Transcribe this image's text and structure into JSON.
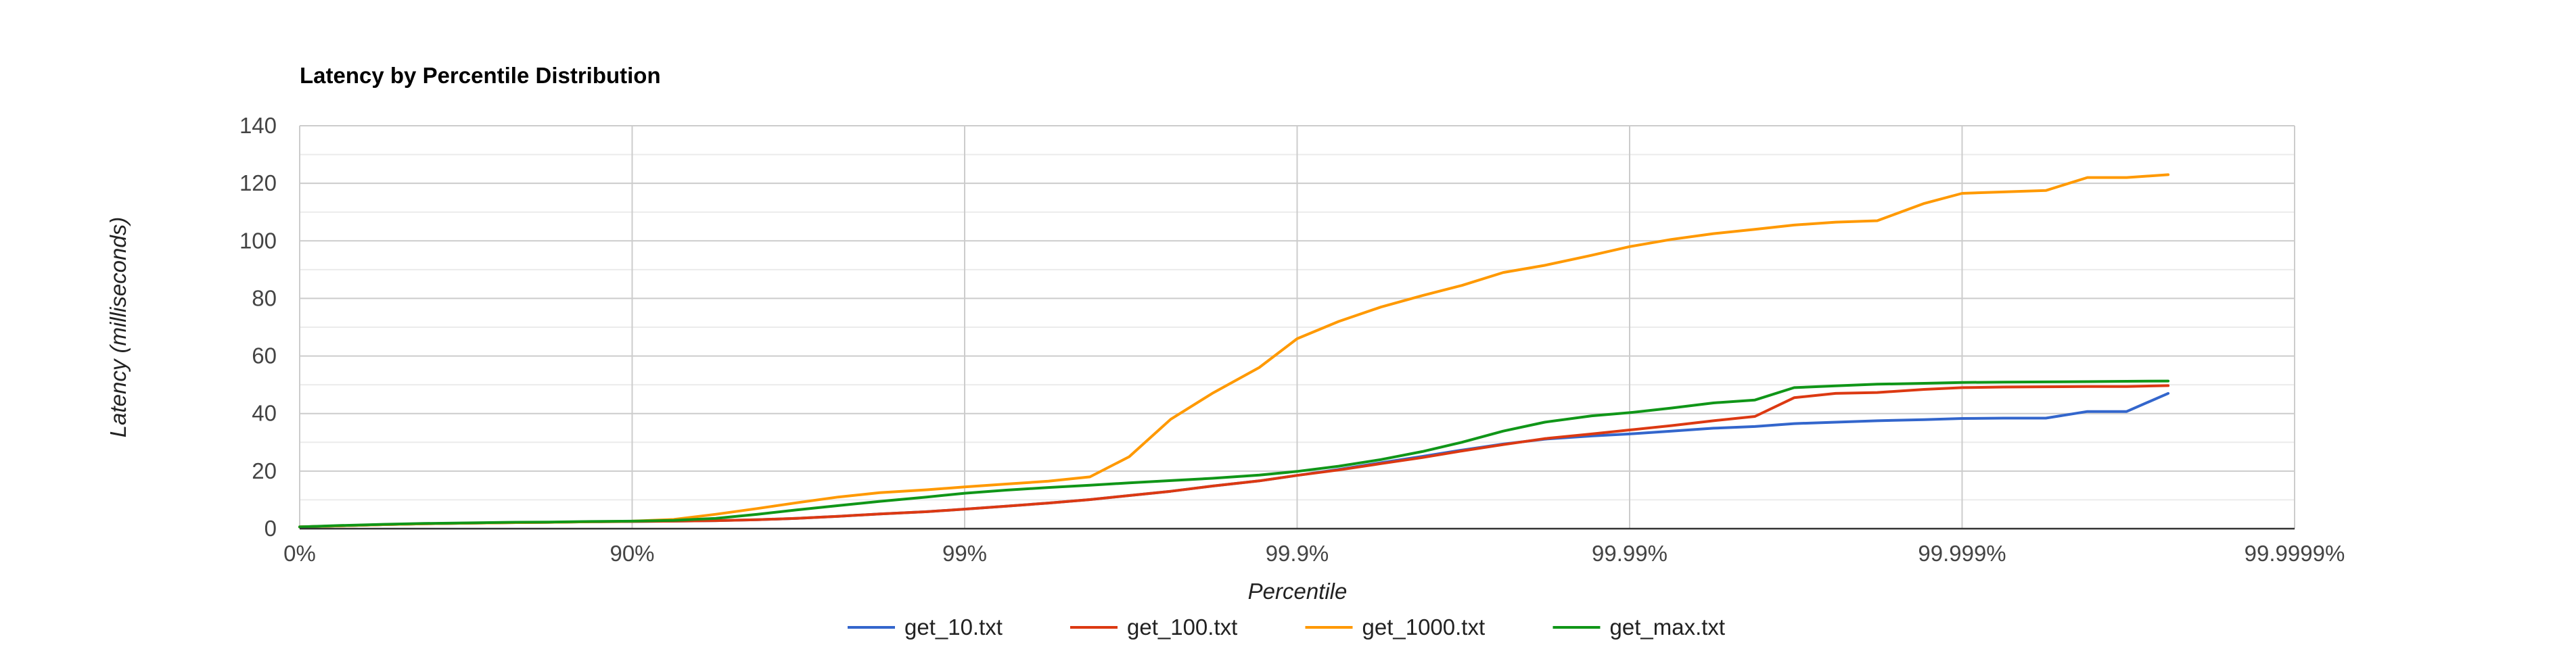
{
  "chart_data": {
    "type": "line",
    "title": "Latency by Percentile Distribution",
    "xlabel": "Percentile",
    "ylabel": "Latency (milliseconds)",
    "x_scale": "log-inverse",
    "x_ticks": [
      "0%",
      "90%",
      "99%",
      "99.9%",
      "99.99%",
      "99.999%",
      "99.9999%"
    ],
    "xlim": [
      "0%",
      "99.9999%"
    ],
    "ylim": [
      0,
      140
    ],
    "y_ticks": [
      0,
      20,
      40,
      60,
      80,
      100,
      120,
      140
    ],
    "grid": true,
    "legend": "bottom",
    "x": [
      "0%",
      "25%",
      "43.8%",
      "57.8%",
      "68.4%",
      "76.3%",
      "82.2%",
      "86.7%",
      "90%",
      "92.5%",
      "94.4%",
      "95.8%",
      "96.8%",
      "97.6%",
      "98.2%",
      "98.7%",
      "99%",
      "99.25%",
      "99.44%",
      "99.58%",
      "99.68%",
      "99.76%",
      "99.82%",
      "99.87%",
      "99.9%",
      "99.925%",
      "99.944%",
      "99.958%",
      "99.968%",
      "99.976%",
      "99.982%",
      "99.987%",
      "99.99%",
      "99.9925%",
      "99.9944%",
      "99.9958%",
      "99.9968%",
      "99.9976%",
      "99.9982%",
      "99.9987%",
      "99.999%",
      "99.99925%",
      "99.99944%",
      "99.99958%",
      "99.99968%",
      "99.99976%"
    ],
    "series": [
      {
        "name": "get_10.txt",
        "color": "#3366cc",
        "values": [
          0.6,
          1.0,
          1.4,
          1.7,
          1.9,
          2.1,
          2.2,
          2.4,
          2.5,
          2.6,
          2.8,
          3.1,
          3.6,
          4.3,
          5.1,
          5.9,
          6.8,
          7.8,
          8.9,
          10.1,
          11.5,
          13.0,
          14.8,
          16.6,
          18.5,
          20.6,
          22.9,
          25.1,
          27.3,
          29.4,
          31.1,
          32.2,
          32.9,
          33.9,
          34.9,
          35.5,
          36.5,
          37.0,
          37.5,
          37.9,
          38.3,
          38.4,
          38.4,
          40.7,
          40.7,
          47.0
        ]
      },
      {
        "name": "get_100.txt",
        "color": "#dc3912",
        "values": [
          0.6,
          1.0,
          1.4,
          1.7,
          1.9,
          2.1,
          2.2,
          2.4,
          2.5,
          2.6,
          2.8,
          3.1,
          3.6,
          4.3,
          5.1,
          5.9,
          6.8,
          7.8,
          8.9,
          10.1,
          11.5,
          13.0,
          14.8,
          16.6,
          18.5,
          20.4,
          22.6,
          24.7,
          27.0,
          29.2,
          31.3,
          32.9,
          34.3,
          35.8,
          37.5,
          39.0,
          45.5,
          47.0,
          47.3,
          48.4,
          49.0,
          49.2,
          49.3,
          49.4,
          49.4,
          49.7
        ]
      },
      {
        "name": "get_1000.txt",
        "color": "#ff9900",
        "values": [
          0.6,
          1.0,
          1.4,
          1.7,
          1.9,
          2.1,
          2.2,
          2.4,
          2.6,
          3.2,
          5.0,
          7.0,
          9.0,
          11.0,
          12.5,
          13.5,
          14.5,
          15.5,
          16.5,
          18.0,
          25.0,
          38.0,
          47.0,
          56.0,
          66.0,
          72.0,
          77.0,
          81.0,
          84.5,
          89.0,
          91.5,
          95.0,
          98.0,
          100.5,
          102.5,
          104.0,
          105.5,
          106.5,
          107.0,
          113.0,
          116.5,
          117.0,
          117.5,
          122.0,
          122.0,
          123.0
        ]
      },
      {
        "name": "get_max.txt",
        "color": "#109618",
        "values": [
          0.6,
          1.1,
          1.5,
          1.8,
          2.0,
          2.2,
          2.3,
          2.5,
          2.6,
          2.9,
          3.6,
          5.0,
          6.5,
          8.0,
          9.5,
          11.0,
          12.3,
          13.4,
          14.3,
          15.1,
          15.9,
          16.7,
          17.5,
          18.6,
          19.9,
          21.7,
          24.0,
          26.8,
          30.0,
          33.9,
          37.0,
          39.2,
          40.3,
          41.9,
          43.7,
          44.7,
          49.0,
          49.6,
          50.2,
          50.5,
          50.8,
          50.9,
          51.0,
          51.1,
          51.2,
          51.3
        ]
      }
    ]
  }
}
